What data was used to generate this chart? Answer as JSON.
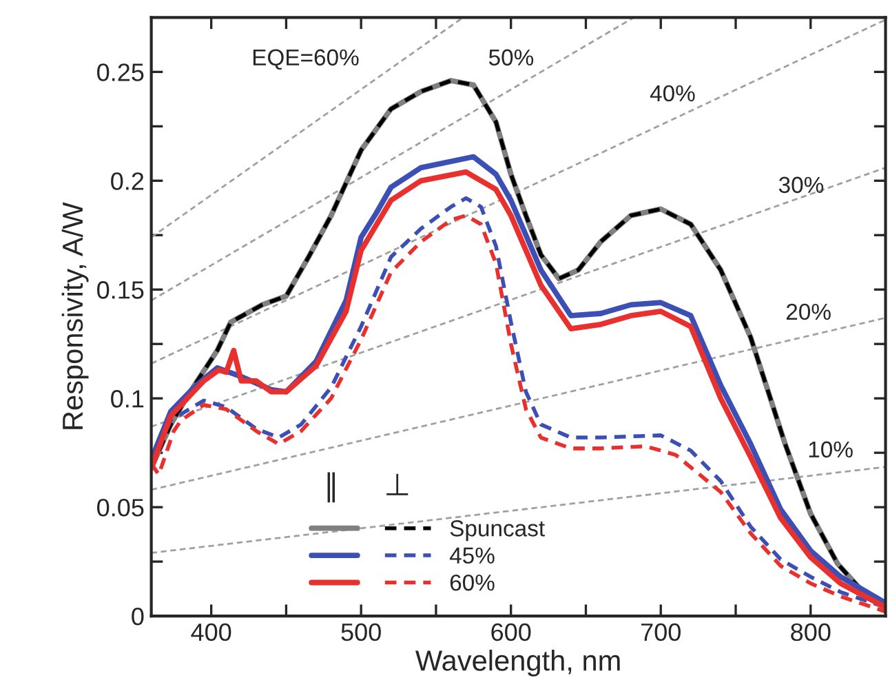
{
  "chart_data": {
    "type": "line",
    "xlabel": "Wavelength, nm",
    "ylabel": "Responsivity, A/W",
    "xlim": [
      360,
      850
    ],
    "ylim": [
      0,
      0.275
    ],
    "xticks": [
      400,
      {
        "value": 450,
        "label": null
      },
      500,
      {
        "value": 550,
        "label": null
      },
      600,
      {
        "value": 650,
        "label": null
      },
      700,
      {
        "value": 750,
        "label": null
      },
      800
    ],
    "yticks": [
      0,
      {
        "value": 0.025,
        "label": null
      },
      0.05,
      {
        "value": 0.075,
        "label": null
      },
      0.1,
      {
        "value": 0.125,
        "label": null
      },
      0.15,
      {
        "value": 0.175,
        "label": null
      },
      0.2,
      {
        "value": 0.225,
        "label": null
      },
      0.25
    ],
    "grid": false,
    "legend": "bottom",
    "annotations": [
      "EQE=60%",
      "50%",
      "40%",
      "30%",
      "20%",
      "10%",
      "∥",
      "⊥"
    ],
    "series": [
      {
        "line_style": "dashed",
        "color": "#a0a0a0",
        "x": [
          360,
          850
        ],
        "values": [
          0.029,
          0.0685
        ]
      },
      {
        "line_style": "dashed",
        "color": "#a0a0a0",
        "x": [
          360,
          850
        ],
        "values": [
          0.058,
          0.137
        ]
      },
      {
        "line_style": "dashed",
        "color": "#a0a0a0",
        "x": [
          360,
          850
        ],
        "values": [
          0.087,
          0.206
        ]
      },
      {
        "line_style": "dashed",
        "color": "#a0a0a0",
        "x": [
          360,
          850
        ],
        "values": [
          0.116,
          0.274
        ]
      },
      {
        "line_style": "dashed",
        "color": "#a0a0a0",
        "x": [
          360,
          682
        ],
        "values": [
          0.145,
          0.275
        ]
      },
      {
        "line_style": "dashed",
        "color": "#a0a0a0",
        "x": [
          360,
          568
        ],
        "values": [
          0.174,
          0.275
        ]
      },
      {
        "line_style": "solid",
        "color": "#808080",
        "x": [
          360,
          373,
          385,
          404,
          413,
          434,
          450,
          465,
          480,
          500,
          520,
          540,
          560,
          575,
          590,
          600,
          610,
          620,
          632,
          645,
          660,
          680,
          700,
          720,
          740,
          760,
          783,
          800,
          818,
          837,
          850
        ],
        "values": [
          0.068,
          0.088,
          0.102,
          0.122,
          0.135,
          0.143,
          0.147,
          0.165,
          0.184,
          0.214,
          0.233,
          0.241,
          0.246,
          0.244,
          0.227,
          0.203,
          0.184,
          0.166,
          0.155,
          0.159,
          0.172,
          0.184,
          0.187,
          0.18,
          0.159,
          0.128,
          0.079,
          0.047,
          0.024,
          0.0095,
          0.005
        ]
      },
      {
        "name": "Spuncast",
        "line_style": "dashed",
        "color": "#000000",
        "x": [
          360,
          373,
          385,
          404,
          413,
          434,
          450,
          465,
          480,
          500,
          520,
          540,
          560,
          575,
          590,
          600,
          610,
          620,
          632,
          645,
          660,
          680,
          700,
          720,
          740,
          760,
          783,
          800,
          818,
          837,
          850
        ],
        "values": [
          0.068,
          0.088,
          0.102,
          0.122,
          0.135,
          0.143,
          0.147,
          0.165,
          0.184,
          0.214,
          0.233,
          0.241,
          0.246,
          0.244,
          0.227,
          0.203,
          0.184,
          0.166,
          0.155,
          0.159,
          0.172,
          0.184,
          0.187,
          0.18,
          0.159,
          0.128,
          0.079,
          0.047,
          0.024,
          0.0095,
          0.005
        ]
      },
      {
        "line_style": "solid",
        "color": "#3c4fb4",
        "x": [
          360,
          373,
          390,
          404,
          420,
          440,
          450,
          470,
          490,
          500,
          510,
          520,
          540,
          575,
          590,
          600,
          620,
          640,
          660,
          680,
          700,
          720,
          740,
          760,
          780,
          800,
          820,
          850
        ],
        "values": [
          0.072,
          0.094,
          0.106,
          0.114,
          0.11,
          0.104,
          0.103,
          0.117,
          0.145,
          0.174,
          0.185,
          0.197,
          0.206,
          0.211,
          0.203,
          0.191,
          0.159,
          0.138,
          0.139,
          0.143,
          0.144,
          0.138,
          0.106,
          0.079,
          0.049,
          0.03,
          0.018,
          0.006
        ]
      },
      {
        "name": "45%",
        "line_style": "dashed",
        "color": "#3c4fb4",
        "x": [
          360,
          373,
          395,
          410,
          430,
          445,
          460,
          480,
          500,
          520,
          540,
          560,
          570,
          580,
          590,
          600,
          610,
          620,
          640,
          660,
          700,
          720,
          740,
          760,
          780,
          800,
          820,
          850
        ],
        "values": [
          0.07,
          0.09,
          0.099,
          0.096,
          0.086,
          0.082,
          0.088,
          0.105,
          0.133,
          0.165,
          0.178,
          0.188,
          0.192,
          0.188,
          0.17,
          0.135,
          0.103,
          0.088,
          0.082,
          0.082,
          0.083,
          0.076,
          0.062,
          0.041,
          0.026,
          0.018,
          0.011,
          0.004
        ]
      },
      {
        "line_style": "solid",
        "color": "#e8312f",
        "x": [
          360,
          373,
          395,
          405,
          410,
          415,
          420,
          430,
          440,
          450,
          470,
          490,
          500,
          520,
          540,
          570,
          590,
          600,
          620,
          640,
          660,
          680,
          700,
          720,
          740,
          760,
          780,
          800,
          820,
          850
        ],
        "values": [
          0.068,
          0.092,
          0.108,
          0.113,
          0.112,
          0.122,
          0.108,
          0.108,
          0.103,
          0.103,
          0.115,
          0.14,
          0.168,
          0.191,
          0.2,
          0.204,
          0.196,
          0.184,
          0.152,
          0.132,
          0.134,
          0.138,
          0.14,
          0.133,
          0.1,
          0.073,
          0.045,
          0.027,
          0.015,
          0.004
        ]
      },
      {
        "name": "60%",
        "line_style": "dashed",
        "color": "#e8312f",
        "x": [
          360,
          365,
          375,
          380,
          395,
          410,
          430,
          445,
          460,
          480,
          500,
          520,
          540,
          560,
          570,
          580,
          590,
          600,
          610,
          620,
          640,
          660,
          690,
          710,
          740,
          760,
          780,
          800,
          820,
          850
        ],
        "values": [
          0.07,
          0.065,
          0.085,
          0.09,
          0.097,
          0.095,
          0.085,
          0.079,
          0.085,
          0.1,
          0.127,
          0.158,
          0.172,
          0.182,
          0.184,
          0.18,
          0.162,
          0.125,
          0.095,
          0.082,
          0.077,
          0.077,
          0.078,
          0.074,
          0.057,
          0.038,
          0.023,
          0.015,
          0.009,
          0.002
        ]
      }
    ]
  }
}
